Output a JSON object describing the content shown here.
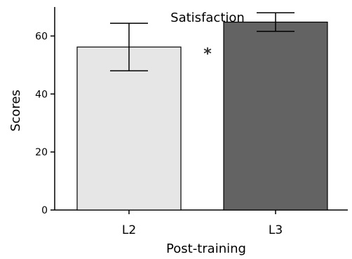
{
  "chart_data": {
    "type": "bar",
    "title": "Satisfaction",
    "xlabel": "Post-training",
    "ylabel": "Scores",
    "categories": [
      "L2",
      "L3"
    ],
    "values": [
      56.2,
      64.8
    ],
    "error_upper": [
      64.4,
      68.0
    ],
    "error_lower": [
      48.0,
      61.6
    ],
    "ylim": [
      0,
      70
    ],
    "yticks": [
      "0",
      "20",
      "40",
      "60"
    ],
    "bar_colors": [
      "#e6e6e6",
      "#636363"
    ],
    "significance_marker": "*",
    "grid": false
  }
}
